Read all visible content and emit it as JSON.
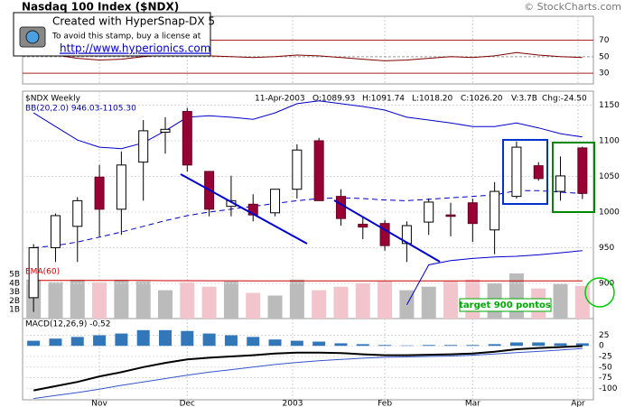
{
  "chart_data": [
    {
      "type": "line",
      "ylim": [
        17,
        99
      ],
      "yticks": [
        30,
        50,
        70
      ],
      "series": [
        {
          "color": "#800000",
          "values": [
            58,
            52,
            48,
            46,
            47,
            50,
            52,
            53,
            51,
            50,
            49,
            50,
            52,
            51,
            49,
            47,
            45,
            46,
            48,
            50,
            49,
            51,
            55,
            52,
            50,
            49
          ]
        }
      ]
    },
    {
      "type": "candlestick",
      "title": "Nasdaq 100 Index ($NDX)",
      "copyright": "© StockCharts.com",
      "stamp": {
        "line1": "Created with HyperSnap-DX 5",
        "line2": "To avoid this stamp, buy a license at",
        "url": "http://www.hyperionics.com"
      },
      "symbol_label": "$NDX Weekly",
      "date": "11-Apr-2003",
      "quote_labels": [
        "O:1089.93",
        "H:1091.74",
        "L:1018.20",
        "C:1026.20",
        "V:3.7B",
        "Chg:-24.50"
      ],
      "bands_label": "BB(20,2.0) 946.03-1105.30",
      "annotation": "target 900 pontos",
      "categories": [
        null,
        null,
        null,
        null,
        null,
        null,
        null,
        null,
        null,
        null,
        null,
        null,
        null,
        null,
        null,
        null,
        null,
        null,
        null,
        null,
        null,
        null,
        null,
        null,
        null,
        null
      ],
      "xlim": [
        -0.5,
        25.5
      ],
      "xticks": [
        {
          "value": 3,
          "label": "Nov"
        },
        {
          "value": 7,
          "label": "Dec"
        },
        {
          "value": 11.8,
          "label": "2003"
        },
        {
          "value": 16,
          "label": "Feb"
        },
        {
          "value": 20,
          "label": "Mar"
        },
        {
          "value": 24.8,
          "label": "Apr"
        }
      ],
      "open": [
        880,
        950,
        980,
        1049,
        1004,
        1070,
        1112,
        1141,
        1057,
        1008,
        1011,
        999,
        1032,
        1100,
        1022,
        983,
        984,
        956,
        986,
        996,
        1013,
        975,
        1022,
        1065,
        1029,
        1089.93
      ],
      "high": [
        955,
        998,
        1021,
        1066,
        1085,
        1129,
        1133,
        1146,
        1057,
        1051,
        1025,
        1032,
        1095,
        1104,
        1032,
        994,
        989,
        987,
        1019,
        1013,
        1019,
        1042,
        1099,
        1070,
        1078,
        1091.74
      ],
      "low": [
        860,
        930,
        930,
        966,
        968,
        1016,
        1082,
        1057,
        994,
        994,
        987,
        994,
        1019,
        1016,
        981,
        962,
        946,
        930,
        968,
        966,
        958,
        941,
        1019,
        1044,
        1016,
        1018.2
      ],
      "close": [
        950,
        995,
        1016,
        1004,
        1066,
        1114,
        1116,
        1066,
        1004,
        1016,
        996,
        1032,
        1087,
        1016,
        991,
        979,
        953,
        981,
        1014,
        994,
        984,
        1029,
        1091,
        1047,
        1050.7,
        1026.2
      ],
      "up_color": "#ffffff",
      "down_color": "#990033",
      "bands": [
        {
          "color": "#0000cc",
          "style": "solid",
          "values": [
            1139,
            1120,
            1101,
            1091,
            1089,
            1097,
            1114,
            1133,
            1135,
            1133,
            1130,
            1139,
            1152,
            1156,
            1152,
            1148,
            1143,
            1133,
            1129,
            1125,
            1120,
            1120,
            1125,
            1118,
            1110,
            1105.3
          ]
        },
        {
          "color": "#0000cc",
          "style": "dashed",
          "values": [
            950,
            953,
            958,
            965,
            972,
            980,
            988,
            995,
            1000,
            1004,
            1008,
            1012,
            1016,
            1019,
            1020,
            1019,
            1017,
            1016,
            1018,
            1020,
            1022,
            1024,
            1030,
            1030,
            1028,
            1026
          ]
        },
        {
          "color": "#0000cc",
          "style": "solid",
          "values": [
            null,
            null,
            null,
            null,
            null,
            null,
            null,
            null,
            null,
            null,
            null,
            null,
            null,
            null,
            null,
            null,
            null,
            870,
            926,
            932,
            935,
            937,
            938,
            940,
            943,
            946.03
          ]
        }
      ],
      "ylim": [
        852,
        1167
      ],
      "yticks": [
        900,
        950,
        1000,
        1050,
        1100,
        1150
      ],
      "grid": true
    },
    {
      "type": "bar",
      "label": "EMA(60)",
      "values": [
        4400000000,
        4100000000,
        4400000000,
        4100000000,
        4400000000,
        4200000000,
        3200000000,
        4100000000,
        3600000000,
        4200000000,
        2900000000,
        2600000000,
        4400000000,
        3200000000,
        3600000000,
        4000000000,
        4200000000,
        3200000000,
        3600000000,
        4200000000,
        4400000000,
        4000000000,
        5100000000,
        3400000000,
        3900000000,
        3700000000
      ],
      "up_color": "#bbbbbb",
      "down_color": "#f2c4cc",
      "ema": {
        "color": "#cc0000",
        "values": [
          4300000000,
          4300000000,
          4300000000,
          4300000000,
          4300000000,
          4300000000,
          4280000000,
          4280000000,
          4270000000,
          4270000000,
          4260000000,
          4250000000,
          4250000000,
          4250000000,
          4250000000,
          4250000000,
          4250000000,
          4250000000,
          4250000000,
          4250000000,
          4250000000,
          4250000000,
          4260000000,
          4260000000,
          4260000000,
          4260000000
        ]
      },
      "ylim": [
        0,
        5200000000
      ],
      "yticks": [
        {
          "value": 1000000000,
          "label": "1B"
        },
        {
          "value": 2000000000,
          "label": "2B"
        },
        {
          "value": 3000000000,
          "label": "3B"
        },
        {
          "value": 4000000000,
          "label": "4B"
        },
        {
          "value": 5000000000,
          "label": "5B"
        }
      ]
    },
    {
      "type": "macd",
      "label": "MACD(12,26,9) -0.52",
      "histogram": {
        "color": "#3377bb",
        "values": [
          12,
          17,
          21,
          25,
          29,
          37,
          37,
          35,
          29,
          25,
          21,
          15,
          12,
          10,
          6,
          4,
          2,
          1,
          2,
          2,
          2,
          4,
          8,
          8,
          6,
          6
        ]
      },
      "macd": {
        "color": "#000000",
        "values": [
          -105,
          -95,
          -85,
          -72,
          -62,
          -50,
          -40,
          -32,
          -28,
          -25,
          -22,
          -18,
          -16,
          -16,
          -17,
          -20,
          -22,
          -22,
          -21,
          -20,
          -18,
          -14,
          -8,
          -5,
          -3,
          -0.52
        ]
      },
      "signal": {
        "color": "#3355cc",
        "values": [
          -124,
          -117,
          -110,
          -102,
          -93,
          -85,
          -77,
          -69,
          -62,
          -56,
          -50,
          -44,
          -39,
          -35,
          -32,
          -29,
          -27,
          -26,
          -25,
          -24,
          -22,
          -19,
          -16,
          -13,
          -10,
          -6
        ]
      },
      "ylim": [
        -127,
        60
      ],
      "yticks": [
        25,
        0,
        -25,
        -50,
        -75,
        -100
      ]
    }
  ]
}
